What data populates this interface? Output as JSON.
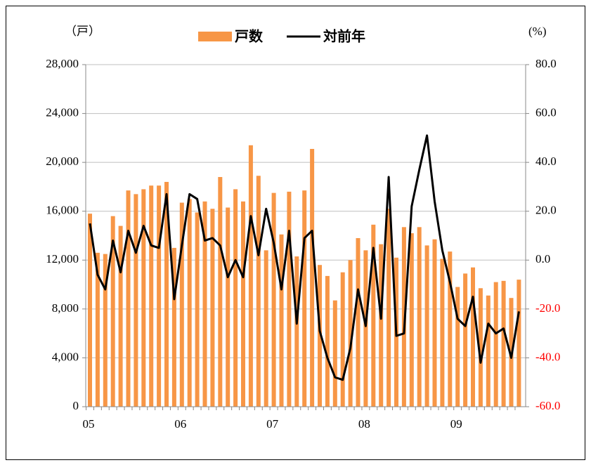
{
  "chart_data": {
    "type": "bar+line",
    "y_label": "（戸）",
    "y2_label": "(%)",
    "categories": [
      "05",
      null,
      null,
      null,
      null,
      null,
      null,
      null,
      null,
      null,
      null,
      null,
      "06",
      null,
      null,
      null,
      null,
      null,
      null,
      null,
      null,
      null,
      null,
      null,
      "07",
      null,
      null,
      null,
      null,
      null,
      null,
      null,
      null,
      null,
      null,
      null,
      "08",
      null,
      null,
      null,
      null,
      null,
      null,
      null,
      null,
      null,
      null,
      null,
      "09",
      null,
      null,
      null,
      null,
      null,
      null,
      null,
      null
    ],
    "series": [
      {
        "name": "戸数",
        "type": "bar",
        "color": "#f79646",
        "axis": "y",
        "values": [
          15800,
          12600,
          12500,
          15600,
          14800,
          17700,
          17400,
          17800,
          18100,
          18100,
          18400,
          13000,
          16700,
          17000,
          15900,
          16800,
          16200,
          18800,
          16300,
          17800,
          16800,
          21400,
          18900,
          12800,
          17500,
          14100,
          17600,
          12300,
          17700,
          21100,
          11600,
          10700,
          8700,
          11000,
          12000,
          13800,
          12800,
          14900,
          13300,
          16200,
          12200,
          14700,
          14200,
          14700,
          13200,
          13700,
          12100,
          12700,
          9800,
          10900,
          11400,
          9700,
          9100,
          10200,
          10300,
          8900,
          10400
        ]
      },
      {
        "name": "対前年",
        "type": "line",
        "color": "#000000",
        "axis": "y2",
        "values": [
          15,
          -6,
          -12,
          8,
          -5,
          12,
          3,
          14,
          6,
          5,
          27,
          -16,
          6,
          27,
          25,
          8,
          9,
          6,
          -7,
          0,
          -7,
          18,
          2,
          21,
          7,
          -12,
          12,
          -26,
          9,
          12,
          -29,
          -40,
          -48,
          -49,
          -36,
          -12,
          -27,
          5,
          -24,
          34,
          -31,
          -30,
          22,
          37,
          51,
          24,
          4,
          -9,
          -24,
          -27,
          -15,
          -42,
          -26,
          -30,
          -28,
          -40,
          -21
        ]
      }
    ],
    "ylim": [
      0,
      28000
    ],
    "yticks": [
      0,
      {
        "value": 4000,
        "label": "4,000"
      },
      {
        "value": 8000,
        "label": "8,000"
      },
      {
        "value": 12000,
        "label": "12,000"
      },
      {
        "value": 16000,
        "label": "16,000"
      },
      {
        "value": 20000,
        "label": "20,000"
      },
      {
        "value": 24000,
        "label": "24,000"
      },
      {
        "value": 28000,
        "label": "28,000"
      }
    ],
    "y2lim": [
      -60,
      80
    ],
    "y2ticks": [
      {
        "value": -60,
        "label": "-60.0"
      },
      {
        "value": -40,
        "label": "-40.0"
      },
      {
        "value": -20,
        "label": "-20.0"
      },
      {
        "value": 0,
        "label": "0.0"
      },
      {
        "value": 20,
        "label": "20.0"
      },
      {
        "value": 40,
        "label": "40.0"
      },
      {
        "value": 60,
        "label": "60.0"
      },
      {
        "value": 80,
        "label": "80.0"
      }
    ],
    "negative_tick_color": "#ff0000",
    "grid": true,
    "legend": "top"
  }
}
